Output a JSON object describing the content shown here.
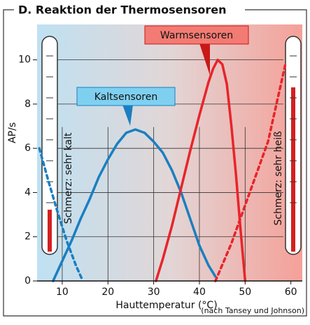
{
  "chart_data": {
    "type": "line",
    "title": "D. Reaktion der Thermosensoren",
    "x_label": "Hauttemperatur (°C)",
    "y_label": "AP/s",
    "source": "(nach Tansey und Johnson)",
    "xlim": [
      4.5,
      62.5
    ],
    "xticks": [
      10,
      20,
      30,
      40,
      50,
      60
    ],
    "ylim": [
      0,
      11.6
    ],
    "yticks": [
      0,
      2,
      4,
      6,
      8,
      10
    ],
    "grid": true,
    "series": [
      {
        "name": "Kaltsensoren",
        "color": "#1a7fc1",
        "dashed": false,
        "x": [
          8,
          10,
          12,
          14,
          16,
          18,
          20,
          22,
          24,
          26,
          28,
          30,
          32,
          34,
          36,
          38,
          40,
          42,
          43.5
        ],
        "values": [
          0,
          0.9,
          1.8,
          2.8,
          3.7,
          4.7,
          5.5,
          6.2,
          6.7,
          6.85,
          6.7,
          6.3,
          5.8,
          5.0,
          4.0,
          2.8,
          1.6,
          0.7,
          0.2
        ]
      },
      {
        "name": "Warmsensoren",
        "color": "#e8242a",
        "dashed": false,
        "x": [
          30.5,
          32,
          34,
          36,
          38,
          40,
          42,
          43,
          44,
          45,
          46,
          47,
          48,
          49,
          50
        ],
        "values": [
          0,
          1.0,
          2.5,
          4.2,
          5.9,
          7.5,
          9.0,
          9.6,
          10,
          9.8,
          8.9,
          7.0,
          4.8,
          2.3,
          0
        ]
      },
      {
        "name": "Schmerz: sehr kalt",
        "color": "#1a7fc1",
        "dashed": true,
        "x": [
          5,
          7,
          9,
          11,
          13,
          14.5
        ],
        "values": [
          6.0,
          4.5,
          3.1,
          1.8,
          0.7,
          0
        ]
      },
      {
        "name": "Schmerz: sehr heiß",
        "color": "#e8242a",
        "dashed": true,
        "x": [
          43.5,
          47,
          51,
          55,
          58.8
        ],
        "values": [
          0,
          1.7,
          4.0,
          6.3,
          9.8
        ]
      }
    ]
  }
}
